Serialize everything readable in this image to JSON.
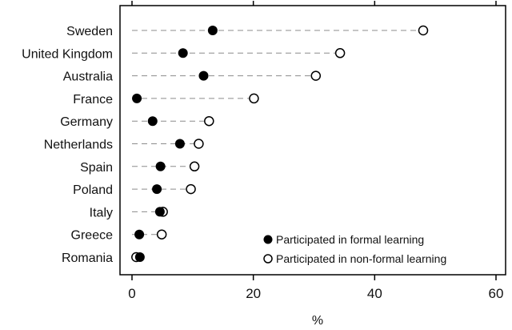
{
  "chart_data": {
    "type": "dot",
    "categories": [
      "Sweden",
      "United Kingdom",
      "Australia",
      "France",
      "Germany",
      "Netherlands",
      "Spain",
      "Poland",
      "Italy",
      "Greece",
      "Romania"
    ],
    "series": [
      {
        "name": "Participated in formal learning",
        "marker": "filled-circle",
        "values": [
          13.3,
          8.4,
          11.8,
          0.8,
          3.4,
          7.9,
          4.7,
          4.1,
          4.6,
          1.2,
          1.3
        ]
      },
      {
        "name": "Participated in non-formal learning",
        "marker": "hollow-circle",
        "values": [
          48.0,
          34.3,
          30.3,
          20.1,
          12.7,
          11.0,
          10.3,
          9.7,
          5.1,
          4.9,
          0.7
        ]
      }
    ],
    "xlabel": "%",
    "xlim": [
      0,
      60
    ],
    "xticks": [
      0,
      20,
      40,
      60
    ],
    "grid": false,
    "guide_lines": "dashed",
    "legend_position": "bottom-right",
    "colors": {
      "marker": "#000000",
      "guide": "#8c8c8c",
      "axis": "#000000"
    }
  }
}
